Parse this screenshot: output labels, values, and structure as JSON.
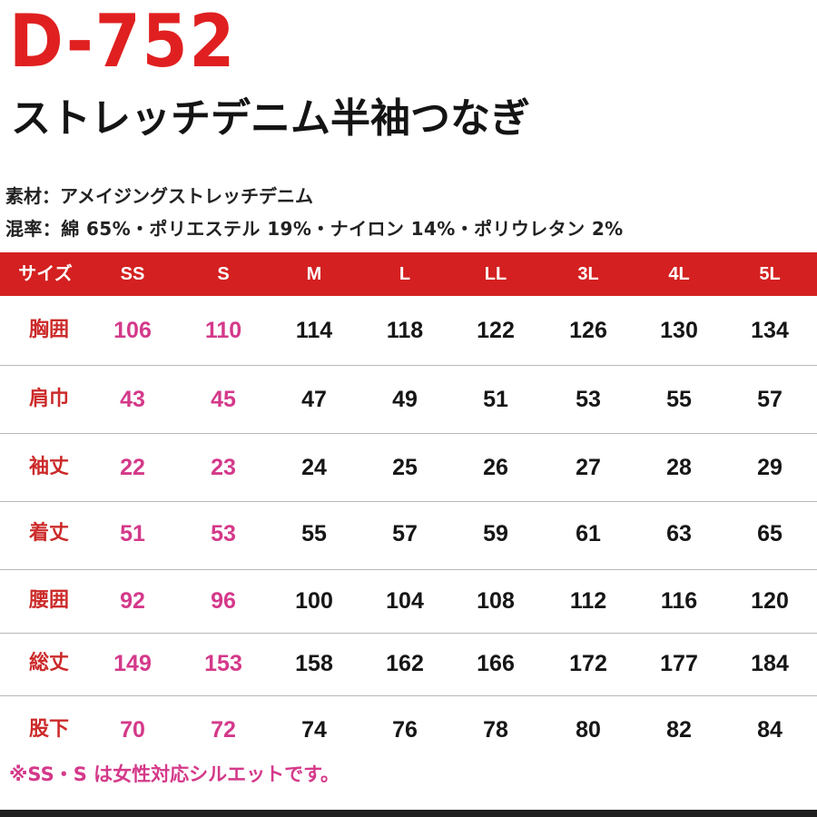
{
  "header": {
    "model": "D-752",
    "product_name": "ストレッチデニム半袖つなぎ"
  },
  "specs": {
    "material": "素材：アメイジングストレッチデニム",
    "blend": "混率：綿 65%・ポリエステル 19%・ナイロン 14%・ポリウレタン 2%"
  },
  "size_table": {
    "header": [
      "サイズ",
      "SS",
      "S",
      "M",
      "L",
      "LL",
      "3L",
      "4L",
      "5L"
    ],
    "rows": [
      {
        "label": "胸囲",
        "values": [
          "106",
          "110",
          "114",
          "118",
          "122",
          "126",
          "130",
          "134"
        ]
      },
      {
        "label": "肩巾",
        "values": [
          "43",
          "45",
          "47",
          "49",
          "51",
          "53",
          "55",
          "57"
        ]
      },
      {
        "label": "袖丈",
        "values": [
          "22",
          "23",
          "24",
          "25",
          "26",
          "27",
          "28",
          "29"
        ]
      },
      {
        "label": "着丈",
        "values": [
          "51",
          "53",
          "55",
          "57",
          "59",
          "61",
          "63",
          "65"
        ]
      },
      {
        "label": "腰囲",
        "values": [
          "92",
          "96",
          "100",
          "104",
          "108",
          "112",
          "116",
          "120"
        ]
      },
      {
        "label": "総丈",
        "values": [
          "149",
          "153",
          "158",
          "162",
          "166",
          "172",
          "177",
          "184"
        ]
      },
      {
        "label": "股下",
        "values": [
          "70",
          "72",
          "74",
          "76",
          "78",
          "80",
          "82",
          "84"
        ]
      }
    ]
  },
  "note": "※SS・S は女性対応シルエットです。",
  "colors": {
    "accent_red": "#d42020",
    "women_pink": "#d4398a",
    "label_red": "#cc2a2a"
  }
}
